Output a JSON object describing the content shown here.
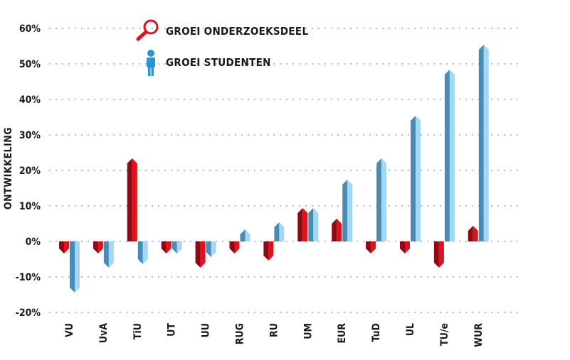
{
  "chart_data": {
    "type": "bar",
    "ylabel": "ONTWIKKELING",
    "ylim": [
      -20,
      60
    ],
    "yticks": [
      "-20%",
      "-10%",
      "0%",
      "10%",
      "20%",
      "30%",
      "40%",
      "50%",
      "60%"
    ],
    "grid": true,
    "legend_position": "top-left",
    "categories": [
      "VU",
      "UvA",
      "TiU",
      "UT",
      "UU",
      "RUG",
      "RU",
      "UM",
      "EUR",
      "TuD",
      "UL",
      "TU/e",
      "WUR"
    ],
    "series": [
      {
        "name": "GROEI ONDERZOEKSDEEL",
        "icon": "magnifier-icon",
        "color": "#e3101e",
        "dark_color": "#8c0a14",
        "values": [
          -2,
          -2,
          22,
          -2,
          -6,
          -2,
          -4,
          8,
          5,
          -2,
          -2,
          -6,
          3
        ]
      },
      {
        "name": "GROEI STUDENTEN",
        "icon": "person-icon",
        "color": "#a3d8f4",
        "dark_color": "#4a8bb5",
        "values": [
          -13,
          -6,
          -5,
          -2,
          -3,
          2,
          4,
          8,
          16,
          22,
          34,
          47,
          54
        ]
      }
    ]
  }
}
